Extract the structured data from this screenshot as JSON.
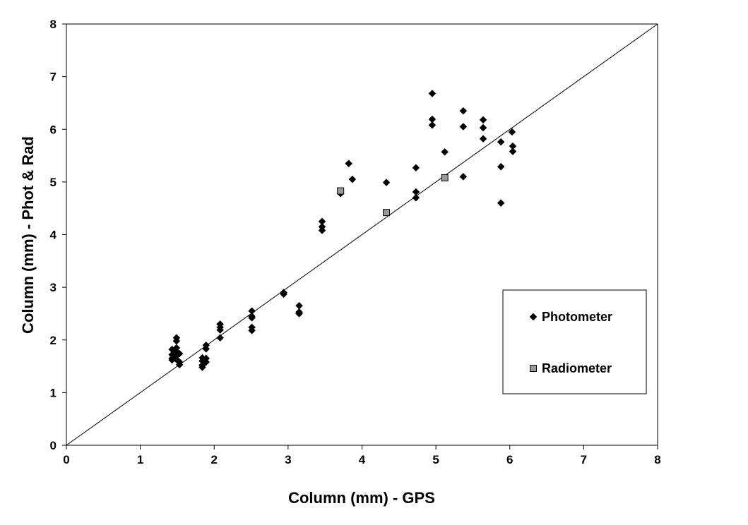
{
  "chart_data": {
    "type": "scatter",
    "title": "",
    "xlabel": "Column (mm) - GPS",
    "ylabel": "Column (mm) - Phot & Rad",
    "xlim": [
      0,
      8
    ],
    "ylim": [
      0,
      8
    ],
    "xticks": [
      "0",
      "1",
      "2",
      "3",
      "4",
      "5",
      "6",
      "7",
      "8"
    ],
    "yticks": [
      "0",
      "1",
      "2",
      "3",
      "4",
      "5",
      "6",
      "7",
      "8"
    ],
    "grid": false,
    "legend_position": "right",
    "reference_line": {
      "x": [
        0,
        8
      ],
      "y": [
        0,
        8
      ]
    },
    "series": [
      {
        "name": "Photometer",
        "marker": "diamond",
        "color": "#000000",
        "points": [
          [
            1.43,
            1.82
          ],
          [
            1.43,
            1.72
          ],
          [
            1.43,
            1.65
          ],
          [
            1.43,
            1.62
          ],
          [
            1.49,
            2.04
          ],
          [
            1.49,
            1.98
          ],
          [
            1.49,
            1.85
          ],
          [
            1.49,
            1.78
          ],
          [
            1.49,
            1.7
          ],
          [
            1.49,
            1.63
          ],
          [
            1.53,
            1.58
          ],
          [
            1.53,
            1.53
          ],
          [
            1.53,
            1.74
          ],
          [
            1.84,
            1.66
          ],
          [
            1.84,
            1.6
          ],
          [
            1.84,
            1.52
          ],
          [
            1.84,
            1.48
          ],
          [
            1.89,
            1.9
          ],
          [
            1.89,
            1.83
          ],
          [
            1.89,
            1.65
          ],
          [
            1.89,
            1.58
          ],
          [
            2.08,
            2.3
          ],
          [
            2.08,
            2.24
          ],
          [
            2.08,
            2.19
          ],
          [
            2.08,
            2.04
          ],
          [
            2.51,
            2.55
          ],
          [
            2.51,
            2.45
          ],
          [
            2.51,
            2.42
          ],
          [
            2.51,
            2.24
          ],
          [
            2.51,
            2.18
          ],
          [
            2.94,
            2.9
          ],
          [
            2.94,
            2.87
          ],
          [
            3.15,
            2.65
          ],
          [
            3.15,
            2.53
          ],
          [
            3.15,
            2.5
          ],
          [
            3.46,
            4.25
          ],
          [
            3.46,
            4.15
          ],
          [
            3.46,
            4.08
          ],
          [
            3.71,
            4.78
          ],
          [
            3.82,
            5.35
          ],
          [
            3.87,
            5.05
          ],
          [
            4.33,
            4.99
          ],
          [
            4.73,
            5.27
          ],
          [
            4.73,
            4.81
          ],
          [
            4.73,
            4.7
          ],
          [
            4.95,
            6.68
          ],
          [
            4.95,
            6.19
          ],
          [
            4.95,
            6.08
          ],
          [
            5.12,
            5.57
          ],
          [
            5.37,
            6.35
          ],
          [
            5.37,
            6.05
          ],
          [
            5.37,
            5.1
          ],
          [
            5.64,
            6.18
          ],
          [
            5.64,
            6.03
          ],
          [
            5.64,
            5.82
          ],
          [
            5.88,
            5.76
          ],
          [
            5.88,
            5.29
          ],
          [
            5.88,
            4.6
          ],
          [
            6.03,
            5.95
          ],
          [
            6.04,
            5.68
          ],
          [
            6.04,
            5.58
          ]
        ]
      },
      {
        "name": "Radiometer",
        "marker": "square",
        "color": "#999999",
        "points": [
          [
            3.71,
            4.83
          ],
          [
            4.33,
            4.42
          ],
          [
            5.12,
            5.08
          ]
        ]
      }
    ]
  }
}
